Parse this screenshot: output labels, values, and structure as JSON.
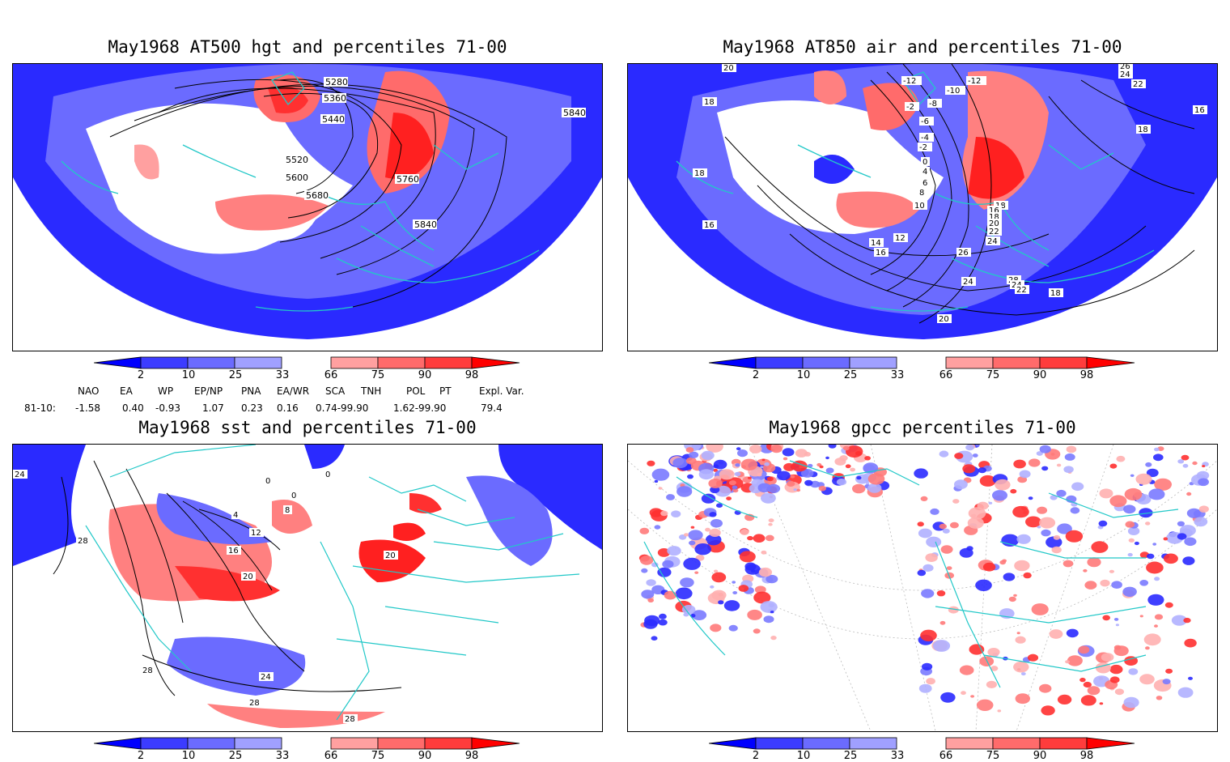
{
  "panels": [
    {
      "title": "May1968 AT500 hgt and percentiles 71-00",
      "contour_labels": [
        "5280",
        "5360",
        "5440",
        "5520",
        "5600",
        "5680",
        "5760",
        "5840",
        "5840"
      ]
    },
    {
      "title": "May1968 AT850 air and percentiles 71-00",
      "contour_labels": [
        "20",
        "18",
        "18",
        "16",
        "-12",
        "-10",
        "-12",
        "-2",
        "-8",
        "-6",
        "-4",
        "-2",
        "0",
        "4",
        "6",
        "8",
        "10",
        "12",
        "14",
        "16",
        "18",
        "16",
        "18",
        "20",
        "22",
        "24",
        "26",
        "28",
        "24",
        "24",
        "22",
        "20",
        "18",
        "26",
        "24",
        "22",
        "16",
        "18"
      ]
    },
    {
      "title": "May1968 sst and percentiles 71-00",
      "contour_labels": [
        "24",
        "0",
        "0",
        "0",
        "4",
        "8",
        "12",
        "16",
        "20",
        "20",
        "24",
        "28",
        "28",
        "28",
        "28"
      ]
    },
    {
      "title": "May1968 gpcc percentiles 71-00",
      "contour_labels": []
    }
  ],
  "colorbar": {
    "labels": [
      "2",
      "10",
      "25",
      "33",
      "66",
      "75",
      "90",
      "98"
    ],
    "colors": [
      "#0000ff",
      "#3c3cff",
      "#6b6bff",
      "#a0a0ff",
      "#ffffff",
      "#ffa0a0",
      "#ff6b6b",
      "#ff3c3c",
      "#ff0000"
    ]
  },
  "indices": {
    "headers": [
      "NAO",
      "EA",
      "WP",
      "EP/NP",
      "PNA",
      "EA/WR",
      "SCA",
      "TNH",
      "POL",
      "PT",
      "Expl. Var."
    ],
    "row_label": "81-10:",
    "values": [
      "-1.58",
      "0.40",
      "-0.93",
      "1.07",
      "0.23",
      "0.16",
      "0.74-99.90",
      "1.62-99.90",
      "79.4"
    ]
  },
  "map_colors": {
    "coast": "#22c8c8",
    "above": "#ff3030",
    "below": "#2a2aff"
  }
}
